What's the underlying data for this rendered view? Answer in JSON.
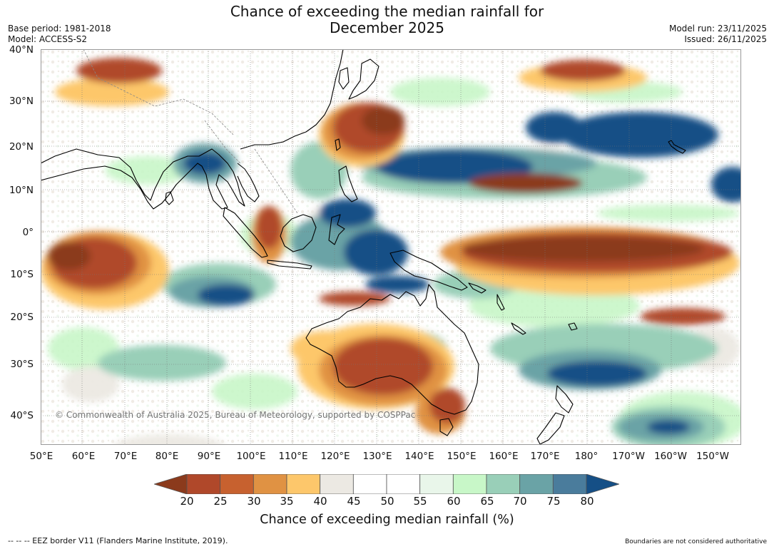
{
  "title": {
    "line1": "Chance of exceeding the median rainfall for",
    "line2": "December 2025"
  },
  "meta": {
    "base_period": "Base period: 1981-2018",
    "model": "Model: ACCESS-S2",
    "model_run": "Model run: 23/11/2025",
    "issued": "Issued: 26/11/2025"
  },
  "map": {
    "lat_labels": [
      "40°N",
      "30°N",
      "20°N",
      "10°N",
      "0°",
      "10°S",
      "20°S",
      "30°S",
      "40°S"
    ],
    "lon_labels": [
      "50°E",
      "60°E",
      "70°E",
      "80°E",
      "90°E",
      "100°E",
      "110°E",
      "120°E",
      "130°E",
      "140°E",
      "150°E",
      "160°E",
      "170°E",
      "180°",
      "170°W",
      "160°W",
      "150°W"
    ],
    "copyright": "© Commonwealth of Australia 2025, Bureau of Meteorology, supported by COSPPac",
    "regions": [
      {
        "name": "east-asia-dry",
        "category": "25-30"
      },
      {
        "name": "maritime-continent-wet",
        "category": "75-80"
      },
      {
        "name": "australia-dry",
        "category": "25-30"
      },
      {
        "name": "north-pacific-wet",
        "category": "75-80"
      },
      {
        "name": "equatorial-pacific-dry",
        "category": "20-25"
      },
      {
        "name": "indian-ocean-dry",
        "category": "25-30"
      },
      {
        "name": "south-pacific-wet",
        "category": "70-75"
      }
    ]
  },
  "colorbar": {
    "ticks": [
      "20",
      "25",
      "30",
      "35",
      "40",
      "45",
      "50",
      "55",
      "60",
      "65",
      "70",
      "75",
      "80"
    ],
    "colors": [
      "#8b3a1c",
      "#b0482a",
      "#c7612f",
      "#e09243",
      "#fdc76b",
      "#ece9e3",
      "#ffffff",
      "#ffffff",
      "#e9f6ea",
      "#c8f7c8",
      "#99cfb8",
      "#6aa3a6",
      "#4a7c9c",
      "#154f86"
    ],
    "title": "Chance of exceeding median rainfall (%)"
  },
  "footer": {
    "eez": "--  --  -- EEZ border V11 (Flanders Marine Institute, 2019).",
    "disclaimer": "Boundaries are not considered authoritative"
  }
}
